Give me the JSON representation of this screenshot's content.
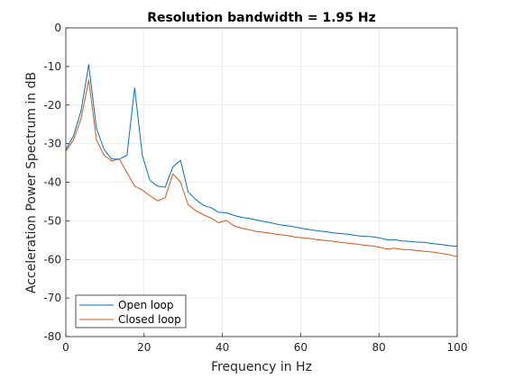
{
  "chart_data": {
    "type": "line",
    "title": "Resolution bandwidth = 1.95 Hz",
    "xlabel": "Frequency in Hz",
    "ylabel": "Acceleration Power Spectrum in dB",
    "xlim": [
      0,
      100
    ],
    "ylim": [
      -80,
      0
    ],
    "xticks": [
      0,
      20,
      40,
      60,
      80,
      100
    ],
    "yticks": [
      -80,
      -70,
      -60,
      -50,
      -40,
      -30,
      -20,
      -10,
      0
    ],
    "grid": true,
    "legend_position": "bottom-left",
    "series": [
      {
        "name": "Open loop",
        "color": "#0072BD",
        "x": [
          0,
          1.95,
          3.9,
          5.86,
          7.81,
          9.77,
          11.72,
          13.67,
          15.63,
          17.58,
          19.53,
          21.48,
          23.44,
          25.39,
          27.34,
          29.3,
          31.25,
          33.2,
          35.16,
          37.11,
          39.06,
          41.02,
          42.97,
          44.92,
          46.88,
          48.83,
          50.78,
          52.73,
          54.69,
          56.64,
          58.59,
          60.55,
          62.5,
          64.45,
          66.41,
          68.36,
          70.31,
          72.27,
          74.22,
          76.17,
          78.13,
          80.08,
          82.03,
          83.98,
          85.94,
          87.89,
          89.84,
          91.8,
          93.75,
          95.7,
          97.66,
          99.61,
          100
        ],
        "y": [
          -31.5,
          -28,
          -21.5,
          -9.5,
          -26,
          -31.5,
          -34,
          -34,
          -33,
          -15.5,
          -33,
          -39.5,
          -41,
          -41.3,
          -36,
          -34.3,
          -42.5,
          -44.5,
          -46,
          -46.6,
          -47.8,
          -47.9,
          -48.6,
          -49.1,
          -49.4,
          -49.8,
          -50.2,
          -50.6,
          -51,
          -51.3,
          -51.6,
          -52,
          -52.3,
          -52.6,
          -52.8,
          -53.1,
          -53.3,
          -53.5,
          -53.8,
          -54,
          -54.1,
          -54.4,
          -54.9,
          -54.9,
          -55.2,
          -55.3,
          -55.5,
          -55.6,
          -55.9,
          -56.1,
          -56.4,
          -56.6,
          -56.4
        ]
      },
      {
        "name": "Closed loop",
        "color": "#D95319",
        "x": [
          0,
          1.95,
          3.9,
          5.86,
          7.81,
          9.77,
          11.72,
          13.67,
          15.63,
          17.58,
          19.53,
          21.48,
          23.44,
          25.39,
          27.34,
          29.3,
          31.25,
          33.2,
          35.16,
          37.11,
          39.06,
          41.02,
          42.97,
          44.92,
          46.88,
          48.83,
          50.78,
          52.73,
          54.69,
          56.64,
          58.59,
          60.55,
          62.5,
          64.45,
          66.41,
          68.36,
          70.31,
          72.27,
          74.22,
          76.17,
          78.13,
          80.08,
          82.03,
          83.98,
          85.94,
          87.89,
          89.84,
          91.8,
          93.75,
          95.7,
          97.66,
          99.61,
          100
        ],
        "y": [
          -32,
          -29,
          -23.5,
          -13.5,
          -29,
          -33,
          -34.5,
          -34,
          -37.5,
          -41,
          -42,
          -43.5,
          -44.8,
          -44,
          -37.8,
          -40,
          -45.8,
          -47.4,
          -48.4,
          -49.3,
          -50.5,
          -49.9,
          -51.3,
          -51.9,
          -52.3,
          -52.8,
          -53,
          -53.3,
          -53.6,
          -53.8,
          -54.2,
          -54.4,
          -54.6,
          -54.9,
          -55.1,
          -55.3,
          -55.6,
          -55.8,
          -56,
          -56.3,
          -56.5,
          -56.8,
          -57.3,
          -57.1,
          -57.4,
          -57.5,
          -57.7,
          -57.9,
          -58.1,
          -58.4,
          -58.7,
          -59.2,
          -59
        ]
      }
    ]
  }
}
